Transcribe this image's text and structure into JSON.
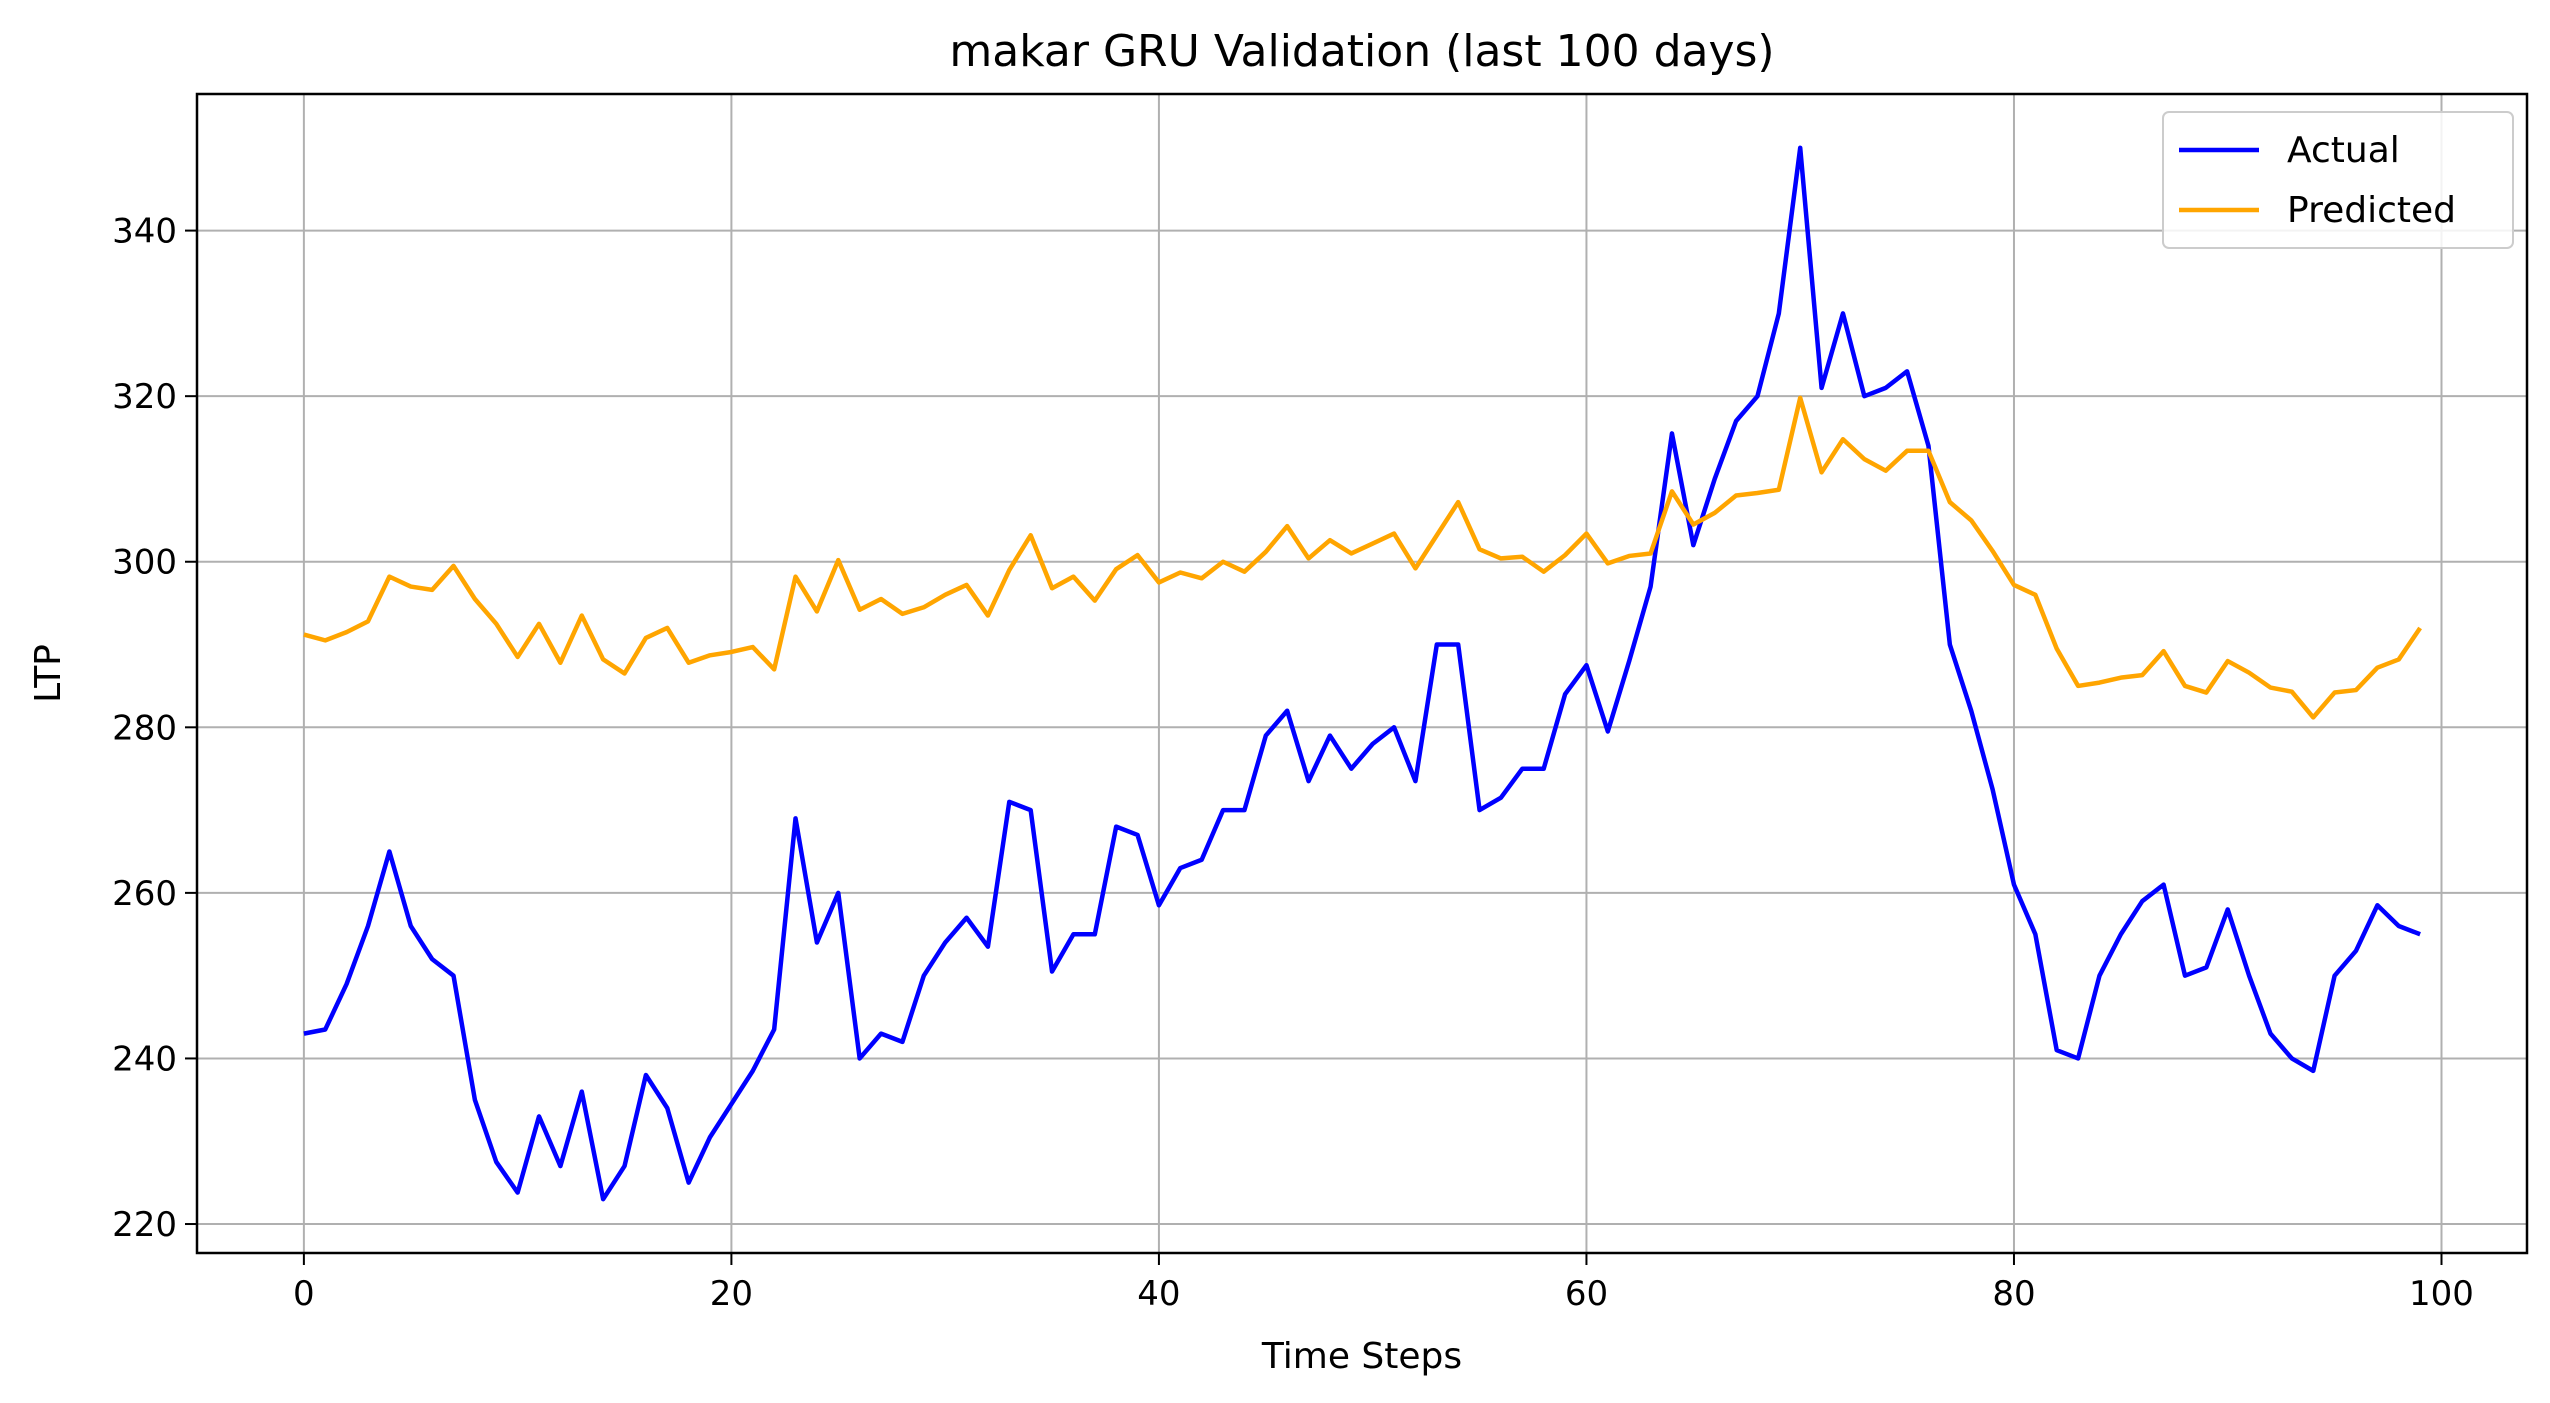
{
  "chart_data": {
    "type": "line",
    "title": "makar GRU Validation (last 100 days)",
    "xlabel": "Time Steps",
    "ylabel": "LTP",
    "xlim": [
      -5,
      104
    ],
    "ylim": [
      216.5,
      356.5
    ],
    "xticks": [
      0,
      20,
      40,
      60,
      80,
      100
    ],
    "yticks": [
      220,
      240,
      260,
      280,
      300,
      320,
      340
    ],
    "grid": true,
    "legend_position": "top-right",
    "series": [
      {
        "name": "Actual",
        "color": "#0000ff",
        "values": [
          243,
          243.5,
          249,
          256,
          265,
          256,
          252,
          250,
          235,
          227.5,
          223.8,
          233,
          227,
          236,
          223,
          227,
          238,
          234,
          225,
          230.5,
          234.5,
          238.5,
          243.5,
          269,
          254,
          260,
          240,
          243,
          242,
          250,
          254,
          257,
          253.5,
          271,
          270,
          250.5,
          255,
          255,
          268,
          267,
          258.5,
          263,
          264,
          270,
          270,
          279,
          282,
          273.5,
          279,
          275,
          278,
          280,
          273.5,
          290,
          290,
          270,
          271.5,
          275,
          275,
          284,
          287.5,
          279.5,
          288,
          297,
          315.5,
          302,
          310,
          317,
          320,
          330,
          350,
          321,
          330,
          320,
          321,
          323,
          314,
          290,
          282,
          272.5,
          261,
          255,
          241,
          240,
          250,
          255,
          259,
          261,
          250,
          251,
          258,
          250,
          243,
          240,
          238.5,
          250,
          253,
          258.5,
          256,
          255
        ]
      },
      {
        "name": "Predicted",
        "color": "#ffa500",
        "values": [
          291.2,
          290.5,
          291.5,
          292.8,
          298.2,
          297,
          296.6,
          299.5,
          295.5,
          292.5,
          288.5,
          292.5,
          287.8,
          293.5,
          288.2,
          286.5,
          290.8,
          292,
          287.8,
          288.7,
          289.1,
          289.7,
          287,
          298.2,
          294,
          300.2,
          294.2,
          295.5,
          293.7,
          294.5,
          296,
          297.2,
          293.5,
          299,
          303.2,
          296.8,
          298.2,
          295.3,
          299.1,
          300.8,
          297.5,
          298.7,
          298,
          300,
          298.8,
          301.2,
          304.3,
          300.4,
          302.6,
          301,
          302.2,
          303.4,
          299.2,
          303.2,
          307.2,
          301.5,
          300.4,
          300.6,
          298.8,
          300.8,
          303.4,
          299.8,
          300.7,
          301,
          308.5,
          304.5,
          305.9,
          308,
          308.3,
          308.7,
          319.8,
          310.8,
          314.8,
          312.4,
          311,
          313.4,
          313.4,
          307.2,
          305,
          301.3,
          297.2,
          296,
          289.5,
          285,
          285.4,
          286,
          286.3,
          289.2,
          285,
          284.2,
          288,
          286.6,
          284.8,
          284.3,
          281.2,
          284.2,
          284.5,
          287.2,
          288.2,
          292
        ]
      }
    ]
  }
}
